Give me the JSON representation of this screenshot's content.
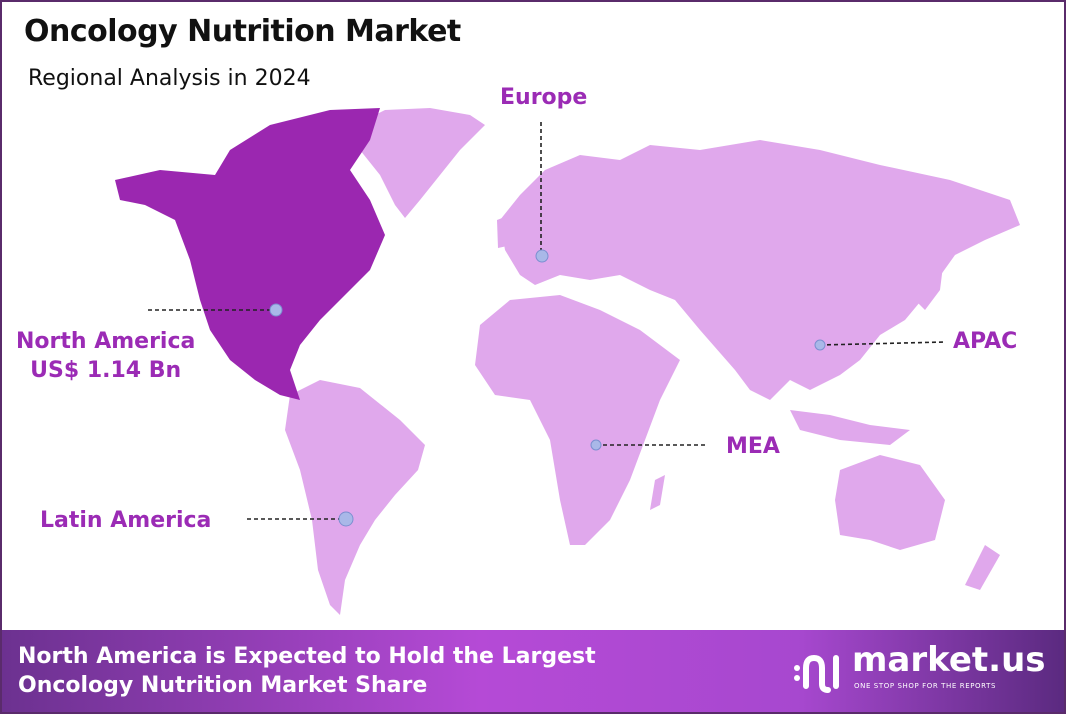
{
  "header": {
    "title": "Oncology Nutrition Market",
    "subtitle": "Regional Analysis in 2024"
  },
  "colors": {
    "highlight_region": "#9b27b0",
    "other_regions": "#e0a8ec",
    "label": "#9b2bb5",
    "marker": "#a9b8e8"
  },
  "regions": [
    {
      "name": "North America",
      "value": "US$ 1.14 Bn",
      "highlighted": true
    },
    {
      "name": "Europe"
    },
    {
      "name": "APAC"
    },
    {
      "name": "MEA"
    },
    {
      "name": "Latin America"
    }
  ],
  "footer": {
    "line1": "North America is Expected to Hold the Largest",
    "line2": "Oncology Nutrition Market Share"
  },
  "brand": {
    "name": "market.us",
    "tagline": "ONE STOP SHOP FOR THE REPORTS"
  }
}
